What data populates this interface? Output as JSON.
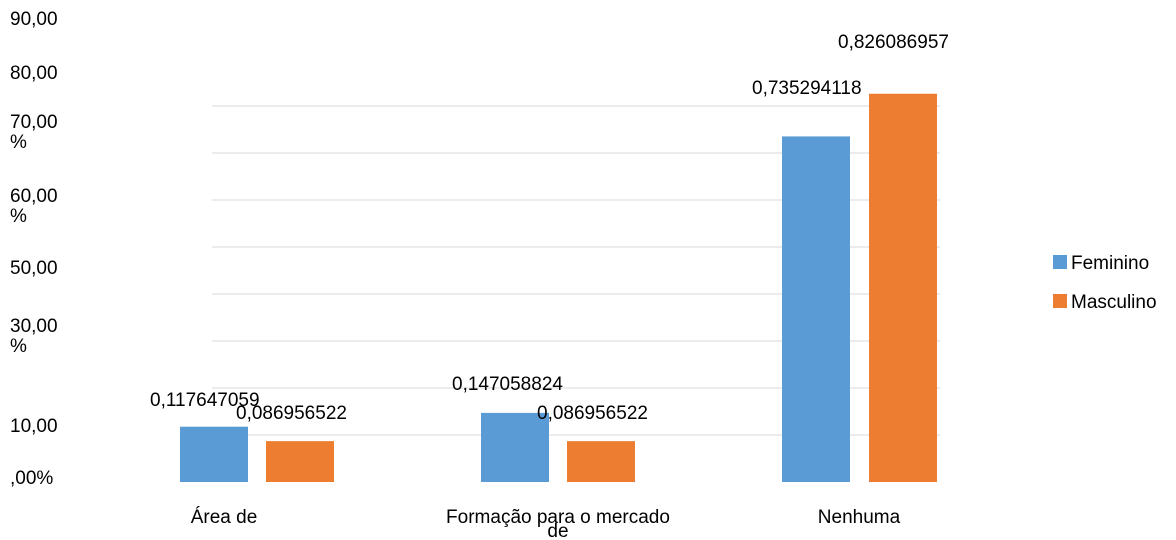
{
  "chart_data": {
    "type": "bar",
    "categories": [
      "Área de",
      "Formação para o mercado de",
      "Nenhuma"
    ],
    "series": [
      {
        "name": "Feminino",
        "values": [
          0.117647059,
          0.147058824,
          0.735294118
        ],
        "color": "#5B9BD5"
      },
      {
        "name": "Masculino",
        "values": [
          0.086956522,
          0.086956522,
          0.826086957
        ],
        "color": "#ED7D31"
      }
    ],
    "data_labels": [
      [
        "0,117647059",
        "0,147058824",
        "0,735294118"
      ],
      [
        "0,086956522",
        "0,086956522",
        "0,826086957"
      ]
    ],
    "y_tick_labels": [
      "90,00",
      "80,00",
      "70,00 %",
      "60,00 %",
      "50,00",
      "30,00 %",
      "10,00",
      ",00%"
    ],
    "ylim": [
      0,
      0.9
    ],
    "legend_position": "right",
    "grid": true,
    "gridline_color": "#D9D9D9"
  }
}
